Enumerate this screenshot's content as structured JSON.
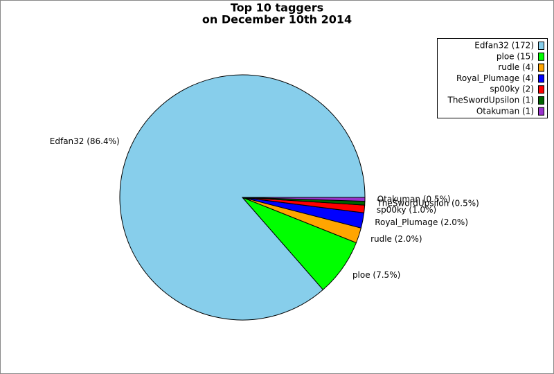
{
  "chart_data": {
    "type": "pie",
    "title": "Top 10 taggers",
    "subtitle": "on December 10th 2014",
    "categories": [
      "Edfan32",
      "ploe",
      "rudle",
      "Royal_Plumage",
      "sp00ky",
      "TheSwordUpsilon",
      "Otakuman"
    ],
    "values": [
      172,
      15,
      4,
      4,
      2,
      1,
      1
    ],
    "value_labels": [
      "Edfan32 (172)",
      "ploe (15)",
      "rudle (4)",
      "Royal_Plumage (4)",
      "sp00ky (2)",
      "TheSwordUpsilon (1)",
      "Otakuman (1)"
    ],
    "percents": [
      86.4,
      7.5,
      2.0,
      2.0,
      1.0,
      0.5,
      0.5
    ],
    "percent_labels": [
      "Edfan32 (86.4%)",
      "ploe (7.5%)",
      "rudle (2.0%)",
      "Royal_Plumage (2.0%)",
      "sp00ky (1.0%)",
      "TheSwordUpsilon (0.5%)",
      "Otakuman (0.5%)"
    ],
    "colors": [
      "#87ceeb",
      "#00ff00",
      "#ffa500",
      "#0000ff",
      "#ff0000",
      "#006400",
      "#9932cc"
    ],
    "legend": "upper right"
  }
}
